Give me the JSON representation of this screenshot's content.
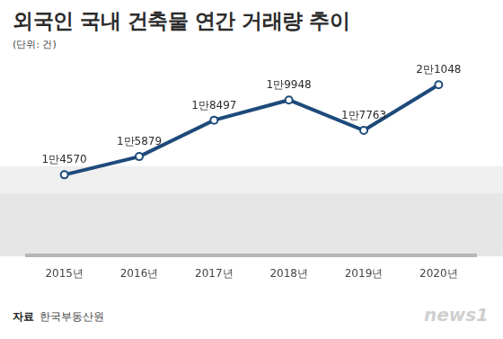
{
  "chart_data": {
    "type": "line",
    "title": "외국인 국내 건축물 연간 거래량 추이",
    "subtitle": "(단위: 건)",
    "categories": [
      "2015년",
      "2016년",
      "2017년",
      "2018년",
      "2019년",
      "2020년"
    ],
    "values": [
      14570,
      15879,
      18497,
      19948,
      17763,
      21048
    ],
    "value_labels": [
      "1만4570",
      "1만5879",
      "1만8497",
      "1만9948",
      "1만7763",
      "2만1048"
    ],
    "data_labels": true,
    "color": "#1d4a7a",
    "marker": "circle",
    "ylim": [
      8800,
      23000
    ],
    "grid": false,
    "tick_labels": "x",
    "source_label": "자료",
    "source": "한국부동산원",
    "logo": "news1"
  }
}
